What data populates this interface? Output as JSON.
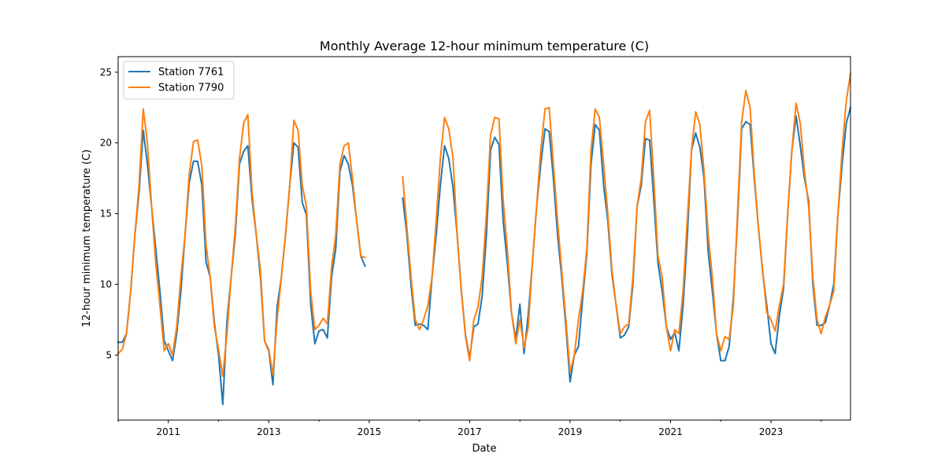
{
  "chart_data": {
    "type": "line",
    "title": "Monthly Average 12-hour minimum temperature (C)",
    "xlabel": "Date",
    "ylabel": "12-hour minimum temperature (C)",
    "x_start": "2010-01",
    "xlim": [
      "2010-01",
      "2024-08"
    ],
    "ylim": [
      0.4,
      26.1
    ],
    "x_ticks": [
      {
        "value": "2011-01",
        "label": "2011"
      },
      {
        "value": "2013-01",
        "label": "2013"
      },
      {
        "value": "2015-01",
        "label": "2015"
      },
      {
        "value": "2017-01",
        "label": "2017"
      },
      {
        "value": "2019-01",
        "label": "2019"
      },
      {
        "value": "2021-01",
        "label": "2021"
      },
      {
        "value": "2023-01",
        "label": "2023"
      }
    ],
    "x_minor_ticks": [
      "2010-01",
      "2012-01",
      "2014-01",
      "2016-01",
      "2018-01",
      "2020-01",
      "2022-01",
      "2024-01"
    ],
    "y_ticks": [
      5,
      10,
      15,
      20,
      25
    ],
    "legend_position": "top-left",
    "grid": false,
    "series": [
      {
        "name": "Station 7761",
        "color": "#1f77b4",
        "values": [
          5.9,
          5.9,
          6.5,
          9.5,
          13.5,
          16.5,
          20.9,
          18.5,
          15.5,
          12.5,
          9.5,
          6.0,
          5.3,
          4.6,
          6.5,
          9.5,
          13.5,
          17.2,
          18.7,
          18.7,
          17.0,
          11.6,
          10.5,
          7.3,
          5.0,
          1.5,
          7.4,
          10.5,
          13.5,
          18.5,
          19.4,
          19.8,
          16.0,
          13.5,
          10.5,
          6.0,
          5.3,
          2.9,
          8.4,
          10.5,
          13.5,
          17.0,
          20.0,
          19.7,
          15.8,
          14.9,
          8.6,
          5.8,
          6.7,
          6.8,
          6.2,
          10.5,
          12.5,
          18.0,
          19.1,
          18.5,
          17.0,
          14.5,
          12.0,
          11.3,
          null,
          null,
          null,
          null,
          null,
          null,
          null,
          null,
          16.1,
          13.5,
          9.9,
          7.1,
          7.2,
          7.1,
          6.8,
          10.5,
          13.5,
          17.0,
          19.8,
          18.9,
          16.9,
          13.5,
          9.6,
          6.4,
          4.8,
          7.0,
          7.2,
          9.2,
          13.5,
          19.5,
          20.4,
          19.9,
          14.5,
          11.5,
          8.0,
          6.1,
          8.6,
          5.1,
          7.9,
          11.5,
          15.5,
          18.5,
          21.0,
          20.8,
          17.5,
          13.5,
          10.5,
          7.0,
          3.1,
          5.0,
          5.6,
          9.0,
          12.2,
          18.5,
          21.3,
          20.9,
          17.0,
          14.5,
          10.7,
          8.5,
          6.2,
          6.4,
          7.0,
          10.0,
          15.5,
          17.0,
          20.3,
          20.2,
          16.0,
          11.5,
          9.5,
          7.0,
          6.1,
          6.6,
          5.3,
          8.5,
          13.3,
          19.5,
          20.7,
          19.7,
          17.5,
          12.3,
          9.5,
          6.5,
          4.6,
          4.6,
          5.6,
          9.0,
          14.5,
          21.0,
          21.5,
          21.3,
          17.5,
          14.0,
          10.9,
          8.5,
          5.8,
          5.1,
          7.8,
          9.7,
          15.0,
          19.5,
          21.9,
          19.8,
          17.5,
          15.9,
          10.0,
          7.1,
          7.1,
          7.3,
          8.5,
          10.0,
          15.0,
          18.5,
          21.4,
          22.5
        ]
      },
      {
        "name": "Station 7790",
        "color": "#ff7f0e",
        "values": [
          5.1,
          5.4,
          6.5,
          9.5,
          13.5,
          17.0,
          22.4,
          20.0,
          15.5,
          11.5,
          8.5,
          5.3,
          5.8,
          5.0,
          7.0,
          10.5,
          13.5,
          17.8,
          20.1,
          20.2,
          18.4,
          12.8,
          10.5,
          7.0,
          5.4,
          3.5,
          6.5,
          10.5,
          14.0,
          18.9,
          21.4,
          22.0,
          16.5,
          13.5,
          11.0,
          6.0,
          5.4,
          3.6,
          7.5,
          10.5,
          13.5,
          17.0,
          21.6,
          20.9,
          17.0,
          15.5,
          9.5,
          6.8,
          7.1,
          7.6,
          7.2,
          11.2,
          13.5,
          18.5,
          19.8,
          20.0,
          17.5,
          14.5,
          12.0,
          11.9,
          null,
          null,
          null,
          null,
          null,
          null,
          null,
          null,
          17.6,
          14.0,
          10.5,
          7.5,
          6.8,
          7.5,
          8.5,
          10.5,
          14.5,
          18.9,
          21.8,
          21.0,
          19.0,
          13.5,
          9.5,
          6.3,
          4.6,
          7.5,
          8.4,
          10.5,
          15.0,
          20.6,
          21.8,
          21.7,
          16.0,
          12.5,
          8.0,
          5.8,
          7.5,
          5.5,
          7.0,
          11.5,
          15.5,
          19.5,
          22.4,
          22.5,
          18.5,
          14.5,
          11.0,
          7.5,
          3.8,
          5.0,
          7.5,
          9.5,
          12.5,
          19.5,
          22.4,
          21.8,
          18.5,
          15.0,
          11.0,
          8.5,
          6.5,
          7.0,
          7.2,
          10.5,
          15.5,
          17.5,
          21.5,
          22.3,
          17.5,
          12.0,
          10.5,
          7.0,
          5.3,
          6.8,
          6.5,
          9.5,
          14.5,
          19.5,
          22.2,
          21.3,
          18.0,
          13.5,
          10.5,
          6.5,
          5.3,
          6.3,
          6.1,
          8.5,
          15.0,
          21.5,
          23.7,
          22.5,
          17.8,
          14.0,
          11.0,
          8.0,
          7.5,
          6.7,
          8.5,
          10.0,
          15.0,
          19.5,
          22.8,
          21.4,
          18.0,
          15.5,
          10.5,
          7.5,
          6.5,
          7.7,
          8.5,
          9.5,
          15.0,
          19.5,
          23.0,
          24.9
        ]
      }
    ]
  }
}
